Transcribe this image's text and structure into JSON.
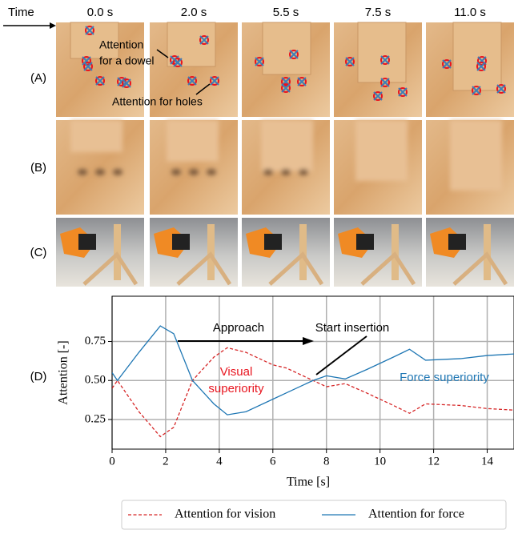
{
  "figure": {
    "time_label": "Time",
    "times": [
      "0.0 s",
      "2.0 s",
      "5.5 s",
      "7.5 s",
      "11.0 s"
    ],
    "rows": [
      "(A)",
      "(B)",
      "(C)",
      "(D)"
    ],
    "dowel_label": [
      "Attention",
      "for a dowel"
    ],
    "holes_label": "Attention for holes"
  },
  "chart_data": {
    "type": "line",
    "xlabel": "Time [s]",
    "ylabel": "Attention [-]",
    "x": [
      0,
      0.2,
      1,
      1.8,
      2.3,
      3,
      3.8,
      4.3,
      5,
      6,
      6.5,
      7.5,
      8,
      8.7,
      9.5,
      10.5,
      11.1,
      11.7,
      13,
      14,
      15
    ],
    "series": [
      {
        "name": "Attention for vision",
        "color": "#d62728",
        "dash": true,
        "values": [
          0.45,
          0.5,
          0.3,
          0.14,
          0.2,
          0.5,
          0.65,
          0.71,
          0.68,
          0.6,
          0.58,
          0.5,
          0.46,
          0.48,
          0.42,
          0.34,
          0.29,
          0.35,
          0.34,
          0.32,
          0.31
        ]
      },
      {
        "name": "Attention for force",
        "color": "#1f77b4",
        "dash": false,
        "values": [
          0.55,
          0.5,
          0.68,
          0.85,
          0.8,
          0.5,
          0.35,
          0.28,
          0.3,
          0.38,
          0.42,
          0.5,
          0.53,
          0.51,
          0.57,
          0.65,
          0.7,
          0.63,
          0.64,
          0.66,
          0.67
        ]
      }
    ],
    "xlim": [
      0,
      15
    ],
    "ylim": [
      0.06,
      1.04
    ],
    "xticks": [
      0,
      2,
      4,
      6,
      8,
      10,
      12,
      14
    ],
    "yticks": [
      0.25,
      {
        "value": 0.5,
        "label": "0.50"
      },
      0.75
    ],
    "grid": true,
    "annotations": [
      {
        "lines": [
          "Approach"
        ],
        "color": "#000000"
      },
      {
        "lines": [
          "Start insertion"
        ],
        "color": "#000000"
      },
      {
        "lines": [
          "Visual",
          "superiority"
        ],
        "color": "#e8141e"
      },
      {
        "lines": [
          "Force superiority"
        ],
        "color": "#1f77b4"
      }
    ],
    "legend": "bottom"
  }
}
